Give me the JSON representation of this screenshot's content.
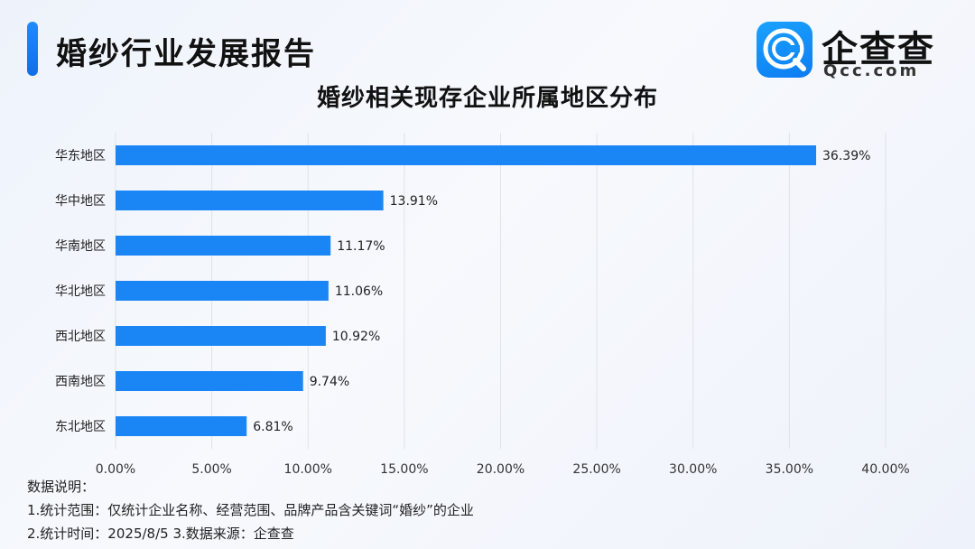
{
  "header": {
    "title": "婚纱行业发展报告",
    "brand_name": "企查查",
    "brand_domain": "Qcc.com",
    "accent_color": "#1a86f5"
  },
  "chart_data": {
    "type": "bar",
    "orientation": "horizontal",
    "title": "婚纱相关现存企业所属地区分布",
    "categories": [
      "华东地区",
      "华中地区",
      "华南地区",
      "华北地区",
      "西北地区",
      "西南地区",
      "东北地区"
    ],
    "values": [
      36.39,
      13.91,
      11.17,
      11.06,
      10.92,
      9.74,
      6.81
    ],
    "value_labels": [
      "36.39%",
      "13.91%",
      "11.17%",
      "11.06%",
      "10.92%",
      "9.74%",
      "6.81%"
    ],
    "xlim": [
      0,
      40
    ],
    "xticks": [
      0,
      5,
      10,
      15,
      20,
      25,
      30,
      35,
      40
    ],
    "xtick_labels": [
      "0.00%",
      "5.00%",
      "10.00%",
      "15.00%",
      "20.00%",
      "25.00%",
      "30.00%",
      "35.00%",
      "40.00%"
    ],
    "xlabel": "",
    "ylabel": "",
    "grid": true,
    "legend": "none",
    "bar_color": "#1a86f5"
  },
  "notes": {
    "heading": "数据说明：",
    "line1": "1.统计范围：仅统计企业名称、经营范围、品牌产品含关键词“婚纱”的企业",
    "line2": "2.统计时间：2025/8/5 3.数据来源：企查查"
  }
}
